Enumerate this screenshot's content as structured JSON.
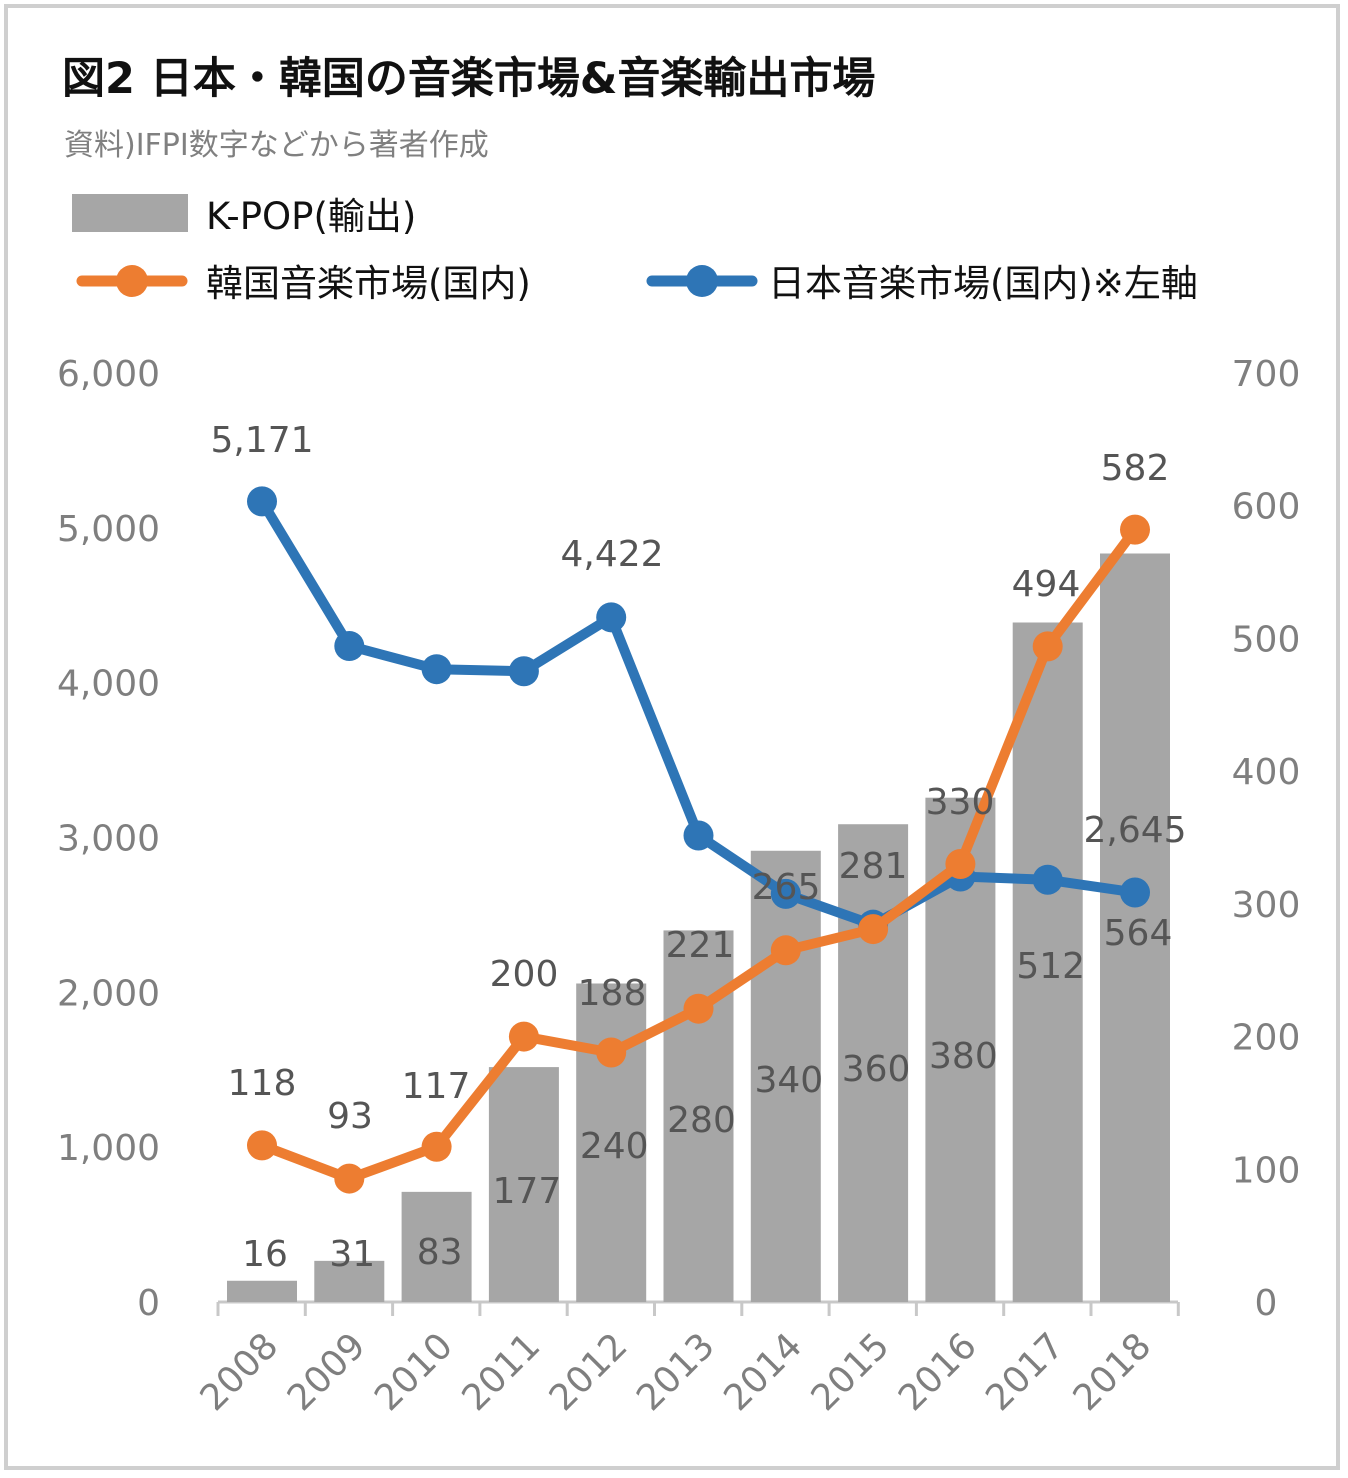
{
  "chart_data": {
    "type": "bar",
    "title": "図2 日本・韓国の音楽市場&音楽輸出市場",
    "subtitle": "資料)IFPI数字などから著者作成",
    "categories": [
      "2008",
      "2009",
      "2010",
      "2011",
      "2012",
      "2013",
      "2014",
      "2015",
      "2016",
      "2017",
      "2018"
    ],
    "series": [
      {
        "name": "K-POP(輸出)",
        "kind": "bar",
        "axis": "right",
        "color": "#a6a6a6",
        "values": [
          16,
          31,
          83,
          177,
          240,
          280,
          340,
          360,
          380,
          512,
          564
        ],
        "labels": [
          "16",
          "31",
          "83",
          "177",
          "240",
          "280",
          "340",
          "360",
          "380",
          "512",
          "564"
        ]
      },
      {
        "name": "韓国音楽市場(国内)",
        "kind": "line",
        "axis": "right",
        "color": "#ed7d31",
        "values": [
          118,
          93,
          117,
          200,
          188,
          221,
          265,
          281,
          330,
          494,
          582
        ],
        "labels": [
          "118",
          "93",
          "117",
          "200",
          "188",
          "221",
          "265",
          "281",
          "330",
          "494",
          "582"
        ]
      },
      {
        "name": "日本音楽市場(国内)※左軸",
        "kind": "line",
        "axis": "left",
        "color": "#2e75b6",
        "values": [
          5171,
          4237,
          4087,
          4074,
          4422,
          3013,
          2636,
          2437,
          2748,
          2727,
          2645
        ],
        "labels": [
          "5,171",
          "",
          "",
          "",
          "4,422",
          "",
          "",
          "",
          "",
          "",
          "2,645"
        ]
      }
    ],
    "y_left": {
      "ticks": [
        "0",
        "1,000",
        "2,000",
        "3,000",
        "4,000",
        "5,000",
        "6,000"
      ],
      "ylim": [
        0,
        6000
      ]
    },
    "y_right": {
      "ticks": [
        "0",
        "100",
        "200",
        "300",
        "400",
        "500",
        "600",
        "700"
      ],
      "ylim": [
        0,
        700
      ]
    },
    "grid": false,
    "legend_position": "top-left"
  }
}
